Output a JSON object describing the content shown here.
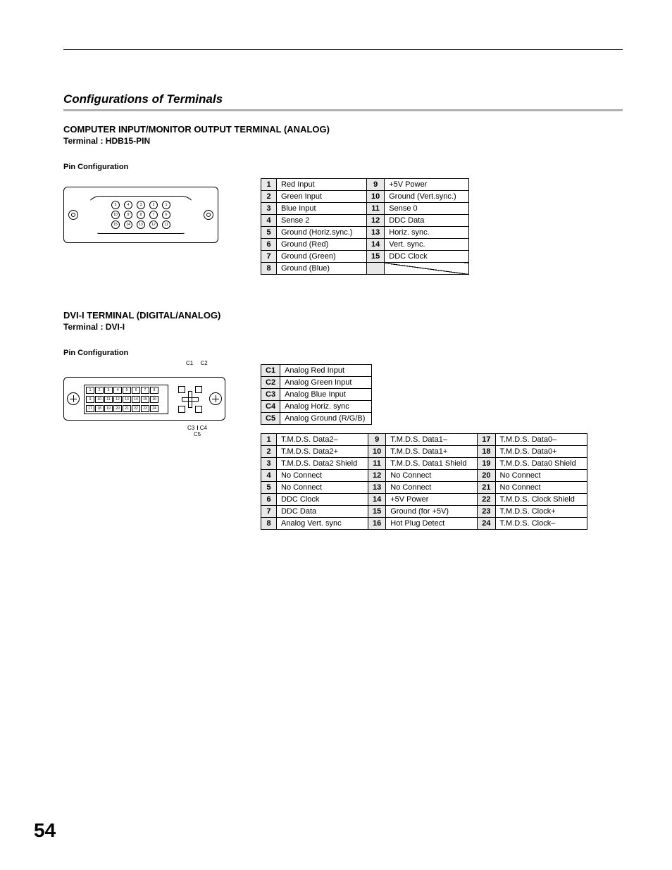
{
  "section_title": "Configurations of Terminals",
  "page_number": "54",
  "vga": {
    "heading": "COMPUTER INPUT/MONITOR OUTPUT TERMINAL (ANALOG)",
    "terminal": "Terminal : HDB15-PIN",
    "sub": "Pin Configuration",
    "left": [
      {
        "n": "1",
        "v": "Red Input"
      },
      {
        "n": "2",
        "v": "Green Input"
      },
      {
        "n": "3",
        "v": "Blue Input"
      },
      {
        "n": "4",
        "v": "Sense 2"
      },
      {
        "n": "5",
        "v": "Ground (Horiz.sync.)"
      },
      {
        "n": "6",
        "v": "Ground (Red)"
      },
      {
        "n": "7",
        "v": "Ground (Green)"
      },
      {
        "n": "8",
        "v": "Ground (Blue)"
      }
    ],
    "right": [
      {
        "n": "9",
        "v": "+5V Power"
      },
      {
        "n": "10",
        "v": "Ground (Vert.sync.)"
      },
      {
        "n": "11",
        "v": "Sense 0"
      },
      {
        "n": "12",
        "v": "DDC Data"
      },
      {
        "n": "13",
        "v": "Horiz. sync."
      },
      {
        "n": "14",
        "v": "Vert. sync."
      },
      {
        "n": "15",
        "v": "DDC Clock"
      }
    ],
    "diagram_pins": {
      "row1": [
        "5",
        "4",
        "3",
        "2",
        "1"
      ],
      "row2": [
        "10",
        "9",
        "8",
        "7",
        "6"
      ],
      "row3": [
        "15",
        "14",
        "13",
        "12",
        "11"
      ]
    }
  },
  "dvi": {
    "heading": "DVI-I TERMINAL (DIGITAL/ANALOG)",
    "terminal": "Terminal : DVI-I",
    "sub": "Pin Configuration",
    "c_labels": {
      "c1": "C1",
      "c2": "C2",
      "c3": "C3",
      "c4": "C4",
      "c5": "C5"
    },
    "analog": [
      {
        "n": "C1",
        "v": "Analog Red Input"
      },
      {
        "n": "C2",
        "v": "Analog Green Input"
      },
      {
        "n": "C3",
        "v": "Analog Blue Input"
      },
      {
        "n": "C4",
        "v": "Analog Horiz. sync"
      },
      {
        "n": "C5",
        "v": "Analog Ground (R/G/B)"
      }
    ],
    "digital": {
      "col1": [
        {
          "n": "1",
          "v": "T.M.D.S. Data2–"
        },
        {
          "n": "2",
          "v": "T.M.D.S. Data2+"
        },
        {
          "n": "3",
          "v": "T.M.D.S. Data2 Shield"
        },
        {
          "n": "4",
          "v": "No Connect"
        },
        {
          "n": "5",
          "v": "No Connect"
        },
        {
          "n": "6",
          "v": "DDC Clock"
        },
        {
          "n": "7",
          "v": "DDC Data"
        },
        {
          "n": "8",
          "v": "Analog Vert. sync"
        }
      ],
      "col2": [
        {
          "n": "9",
          "v": "T.M.D.S. Data1–"
        },
        {
          "n": "10",
          "v": "T.M.D.S. Data1+"
        },
        {
          "n": "11",
          "v": "T.M.D.S. Data1 Shield"
        },
        {
          "n": "12",
          "v": "No Connect"
        },
        {
          "n": "13",
          "v": "No Connect"
        },
        {
          "n": "14",
          "v": "+5V Power"
        },
        {
          "n": "15",
          "v": "Ground (for +5V)"
        },
        {
          "n": "16",
          "v": "Hot Plug Detect"
        }
      ],
      "col3": [
        {
          "n": "17",
          "v": "T.M.D.S. Data0–"
        },
        {
          "n": "18",
          "v": "T.M.D.S. Data0+"
        },
        {
          "n": "19",
          "v": "T.M.D.S. Data0 Shield"
        },
        {
          "n": "20",
          "v": "No Connect"
        },
        {
          "n": "21",
          "v": "No Connect"
        },
        {
          "n": "22",
          "v": "T.M.D.S. Clock Shield"
        },
        {
          "n": "23",
          "v": "T.M.D.S. Clock+"
        },
        {
          "n": "24",
          "v": "T.M.D.S. Clock–"
        }
      ]
    },
    "diagram_pins": {
      "row1": [
        "1",
        "2",
        "3",
        "4",
        "5",
        "6",
        "7",
        "8"
      ],
      "row2": [
        "9",
        "10",
        "11",
        "12",
        "13",
        "14",
        "15",
        "16"
      ],
      "row3": [
        "17",
        "18",
        "19",
        "20",
        "21",
        "22",
        "23",
        "24"
      ]
    }
  }
}
